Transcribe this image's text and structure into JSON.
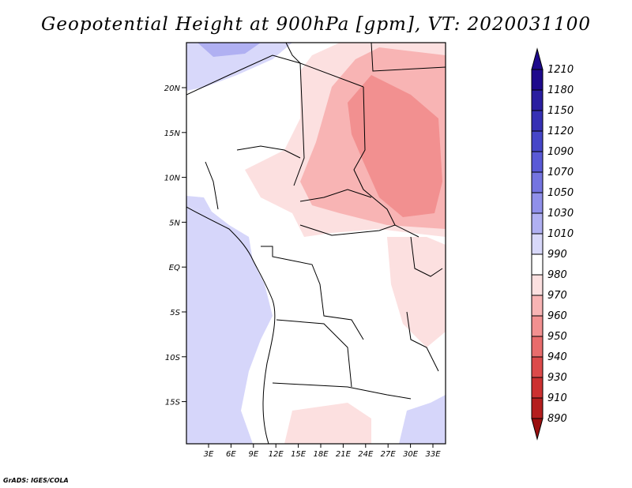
{
  "title": "Geopotential Height at 900hPa [gpm], VT: 2020031100",
  "footer": "GrADS: IGES/COLA",
  "lat_ticks": [
    "20N",
    "15N",
    "10N",
    "5N",
    "EQ",
    "5S",
    "10S",
    "15S"
  ],
  "lon_ticks": [
    "3E",
    "6E",
    "9E",
    "12E",
    "15E",
    "18E",
    "21E",
    "24E",
    "27E",
    "30E",
    "33E"
  ],
  "colorbar": {
    "labels": [
      "1210",
      "1180",
      "1150",
      "1120",
      "1090",
      "1070",
      "1050",
      "1030",
      "1010",
      "990",
      "980",
      "970",
      "960",
      "950",
      "940",
      "930",
      "910",
      "890"
    ],
    "colors": [
      "#1e0a8c",
      "#2a1ea0",
      "#3630b4",
      "#4646c8",
      "#5a5ad6",
      "#7474e0",
      "#9090ea",
      "#b0b0f2",
      "#d8d8fa",
      "#ffffff",
      "#fce0e0",
      "#f8b4b4",
      "#f29090",
      "#e86c6c",
      "#dc4a4a",
      "#cc3030",
      "#b41e1e",
      "#9a0f0f"
    ]
  }
}
